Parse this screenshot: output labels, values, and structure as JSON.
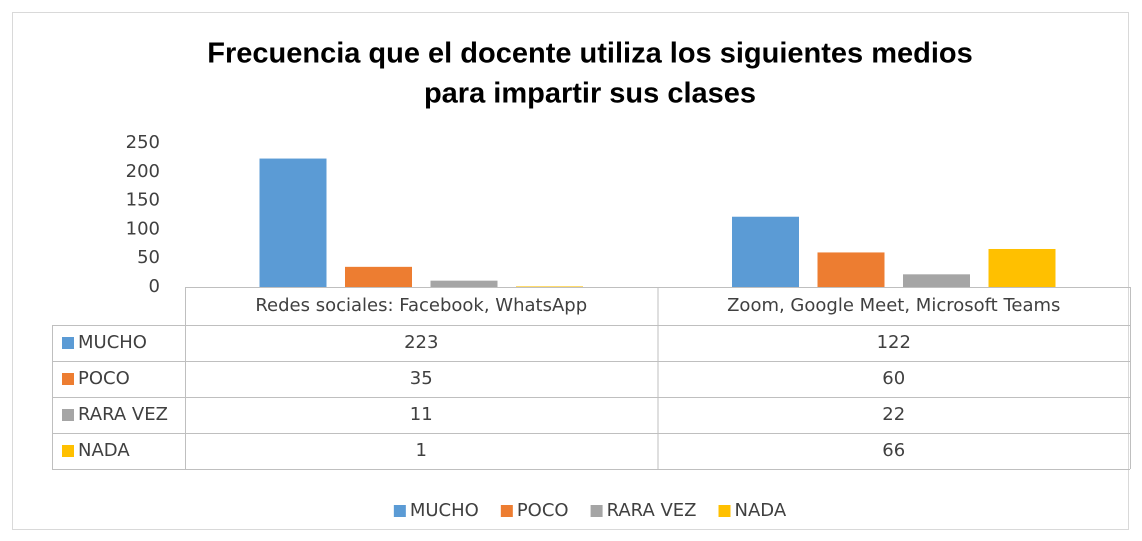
{
  "chart_data": {
    "type": "bar",
    "title": [
      "Frecuencia que el docente utiliza los siguientes medios",
      "para impartir sus clases"
    ],
    "categories": [
      "Redes sociales: Facebook, WhatsApp",
      "Zoom, Google Meet, Microsoft Teams"
    ],
    "series": [
      {
        "name": "MUCHO",
        "color": "#5b9bd5",
        "values": [
          223,
          122
        ]
      },
      {
        "name": "POCO",
        "color": "#ed7d31",
        "values": [
          35,
          60
        ]
      },
      {
        "name": "RARA VEZ",
        "color": "#a5a5a5",
        "values": [
          11,
          22
        ]
      },
      {
        "name": "NADA",
        "color": "#ffc000",
        "values": [
          1,
          66
        ]
      }
    ],
    "ylim": [
      0,
      250
    ],
    "yticks": [
      0,
      50,
      100,
      150,
      200,
      250
    ],
    "grid": false,
    "legend": "bottom"
  }
}
